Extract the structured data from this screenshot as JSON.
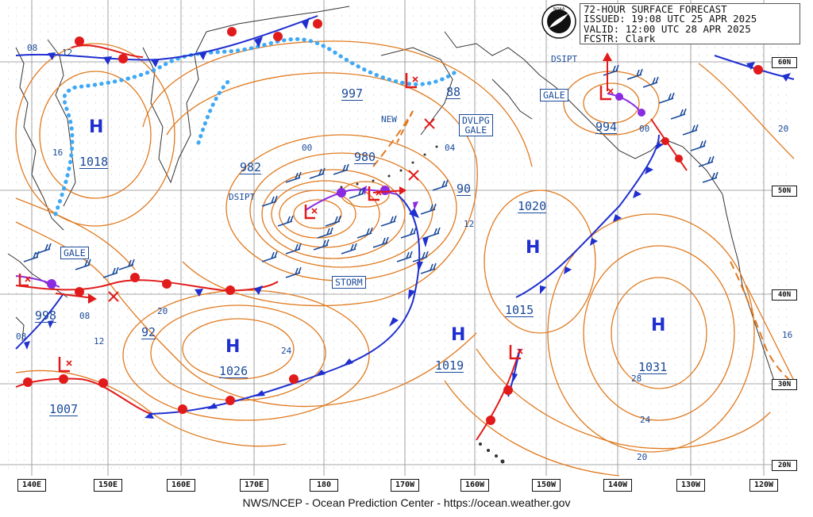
{
  "header": {
    "lines": [
      {
        "key": "",
        "value": "72-HOUR SURFACE FORECAST"
      },
      {
        "key": "ISSUED:",
        "value": "19:08 UTC 25 APR 2025"
      },
      {
        "key": "VALID:",
        "value": "12:00 UTC 28 APR 2025"
      },
      {
        "key": "FCSTR:",
        "value": "Clark"
      }
    ],
    "logo_name": "noaa-logo"
  },
  "footer": "NWS/NCEP - Ocean Prediction Center - https://ocean.weather.gov",
  "longitudes": [
    "140E",
    "150E",
    "160E",
    "170E",
    "180",
    "170W",
    "160W",
    "150W",
    "140W",
    "130W",
    "120W"
  ],
  "latitudes": [
    "60N",
    "50N",
    "40N",
    "30N",
    "20N"
  ],
  "pressure_centers": [
    {
      "type": "H",
      "value": "1018"
    },
    {
      "type": "H",
      "value": "1026"
    },
    {
      "type": "H",
      "value": "1019"
    },
    {
      "type": "H",
      "value": "1031"
    },
    {
      "type": "H",
      "value": "1020"
    },
    {
      "type": "L",
      "value": "980"
    },
    {
      "type": "L",
      "value": "994"
    },
    {
      "type": "L",
      "value": "997"
    },
    {
      "type": "L",
      "value": "1007"
    },
    {
      "type": "L",
      "value": "1015"
    },
    {
      "type": "L",
      "value": "998"
    }
  ],
  "pressure_labels": [
    "982",
    "90",
    "92",
    "88"
  ],
  "isobar_labels": [
    "08",
    "12",
    "16",
    "00",
    "04",
    "12",
    "20",
    "24",
    "08",
    "12",
    "16",
    "20",
    "24",
    "28",
    "00",
    "20",
    "08"
  ],
  "warnings": [
    {
      "text": "GALE"
    },
    {
      "text": "GALE"
    },
    {
      "text": "DVLPG\nGALE"
    },
    {
      "text": "STORM"
    }
  ],
  "tags": [
    "DSIPT",
    "DSIPT",
    "NEW"
  ],
  "colors": {
    "isobar": "#e07a1f",
    "cold_front": "#1f2fd0",
    "warm_front": "#e11b1b",
    "occluded_front": "#8a2be2",
    "ice_edge": "#3fa9f5",
    "label_blue": "#1a4a9a",
    "center_blue": "#1f2fd0",
    "low_red": "#e11b1b",
    "coast": "#333333",
    "grid": "#888888"
  }
}
